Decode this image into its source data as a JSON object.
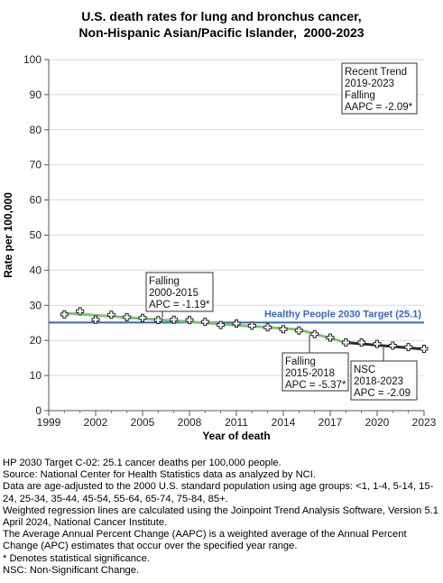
{
  "title_lines": [
    "U.S. death rates for lung and bronchus cancer,",
    "Non-Hispanic Asian/Pacific Islander,  2000-2023"
  ],
  "chart_data": {
    "type": "line",
    "xlabel": "Year of death",
    "ylabel": "Rate per 100,000",
    "xlim": [
      1999,
      2023
    ],
    "ylim": [
      0,
      100
    ],
    "xticks": [
      1999,
      2002,
      2005,
      2008,
      2011,
      2014,
      2017,
      2020,
      2023
    ],
    "yticks": [
      0,
      10,
      20,
      30,
      40,
      50,
      60,
      70,
      80,
      90,
      100
    ],
    "grid": "horizontal",
    "observed": {
      "x": [
        2000,
        2001,
        2002,
        2003,
        2004,
        2005,
        2006,
        2007,
        2008,
        2009,
        2010,
        2011,
        2012,
        2013,
        2014,
        2015,
        2016,
        2017,
        2018,
        2019,
        2020,
        2021,
        2022,
        2023
      ],
      "y": [
        27.4,
        28.3,
        25.9,
        27.3,
        26.6,
        26.4,
        25.8,
        25.9,
        25.8,
        25.3,
        24.4,
        24.8,
        24.2,
        23.7,
        23.2,
        22.8,
        21.8,
        20.8,
        19.4,
        19.4,
        19.0,
        18.5,
        18.1,
        17.6
      ]
    },
    "segments": [
      {
        "x": [
          2000,
          2015
        ],
        "y": [
          27.8,
          23.1
        ],
        "color": "#7dc36e"
      },
      {
        "x": [
          2015,
          2018
        ],
        "y": [
          23.1,
          19.4
        ],
        "color": "#7dc36e"
      },
      {
        "x": [
          2018,
          2023
        ],
        "y": [
          19.4,
          17.5
        ],
        "color": "#2b2b2b"
      }
    ],
    "target": {
      "value": 25.1,
      "label": "Healthy People 2030 Target (25.1)",
      "color": "#3366cc"
    },
    "annotations": [
      {
        "lines": [
          "Recent Trend",
          "2019-2023",
          "Falling",
          "AAPC = -2.09*"
        ]
      },
      {
        "lines": [
          "Falling",
          "2000-2015",
          "APC = -1.19*"
        ]
      },
      {
        "lines": [
          "Falling",
          "2015-2018",
          "APC = -5.37*"
        ]
      },
      {
        "lines": [
          "NSC",
          "2018-2023",
          "APC = -2.09"
        ]
      }
    ]
  },
  "notes": [
    "HP 2030 Target C-02: 25.1 cancer deaths per 100,000 people.",
    "Source: National Center for Health Statistics data as analyzed by NCI.",
    "Data are age-adjusted to the 2000 U.S. standard population using age groups: <1, 1-4, 5-14, 15-24, 25-34, 35-44, 45-54, 55-64, 65-74, 75-84, 85+.",
    "Weighted regression lines are calculated using the Joinpoint Trend Analysis Software, Version 5.1 April 2024, National Cancer Institute.",
    "The Average Annual Percent Change (AAPC) is a weighted average of the Annual Percent Change (APC) estimates that occur over the specified year range.",
    "* Denotes statistical significance.",
    "NSC: Non-Significant Change."
  ]
}
